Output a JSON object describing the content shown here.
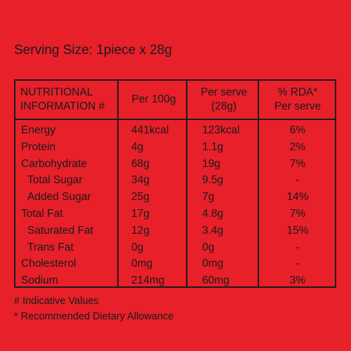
{
  "serving_size": "Serving Size: 1piece x 28g",
  "table": {
    "headers": {
      "nutritional": [
        "NUTRITIONAL",
        "INFORMATION #"
      ],
      "per100g": [
        "Per 100g"
      ],
      "perserve": [
        "Per serve",
        "(28g)"
      ],
      "rda": [
        "% RDA*",
        "Per serve"
      ]
    },
    "rows": [
      {
        "name": "Energy",
        "per100g": "441kcal",
        "perserve": "123kcal",
        "rda": "6%",
        "sub": false
      },
      {
        "name": "Protein",
        "per100g": "4g",
        "perserve": "1.1g",
        "rda": "2%",
        "sub": false
      },
      {
        "name": "Carbohydrate",
        "per100g": "68g",
        "perserve": "19g",
        "rda": "7%",
        "sub": false
      },
      {
        "name": "Total Sugar",
        "per100g": "34g",
        "perserve": "9.5g",
        "rda": "-",
        "sub": true
      },
      {
        "name": "Added Sugar",
        "per100g": "25g",
        "perserve": "7g",
        "rda": "14%",
        "sub": true
      },
      {
        "name": "Total Fat",
        "per100g": "17g",
        "perserve": "4.8g",
        "rda": "7%",
        "sub": false
      },
      {
        "name": "Saturated Fat",
        "per100g": "12g",
        "perserve": "3.4g",
        "rda": "15%",
        "sub": true
      },
      {
        "name": "Trans Fat",
        "per100g": "0g",
        "perserve": "0g",
        "rda": "-",
        "sub": true
      },
      {
        "name": "Cholesterol",
        "per100g": "0mg",
        "perserve": "0mg",
        "rda": "-",
        "sub": false
      },
      {
        "name": "Sodium",
        "per100g": "214mg",
        "perserve": "60mg",
        "rda": "3%",
        "sub": false
      }
    ]
  },
  "notes": [
    "# Indicative Values",
    "* Recommended Dietary Allowance"
  ],
  "colors": {
    "background": "#e8202a",
    "text": "#1a1a1a"
  }
}
